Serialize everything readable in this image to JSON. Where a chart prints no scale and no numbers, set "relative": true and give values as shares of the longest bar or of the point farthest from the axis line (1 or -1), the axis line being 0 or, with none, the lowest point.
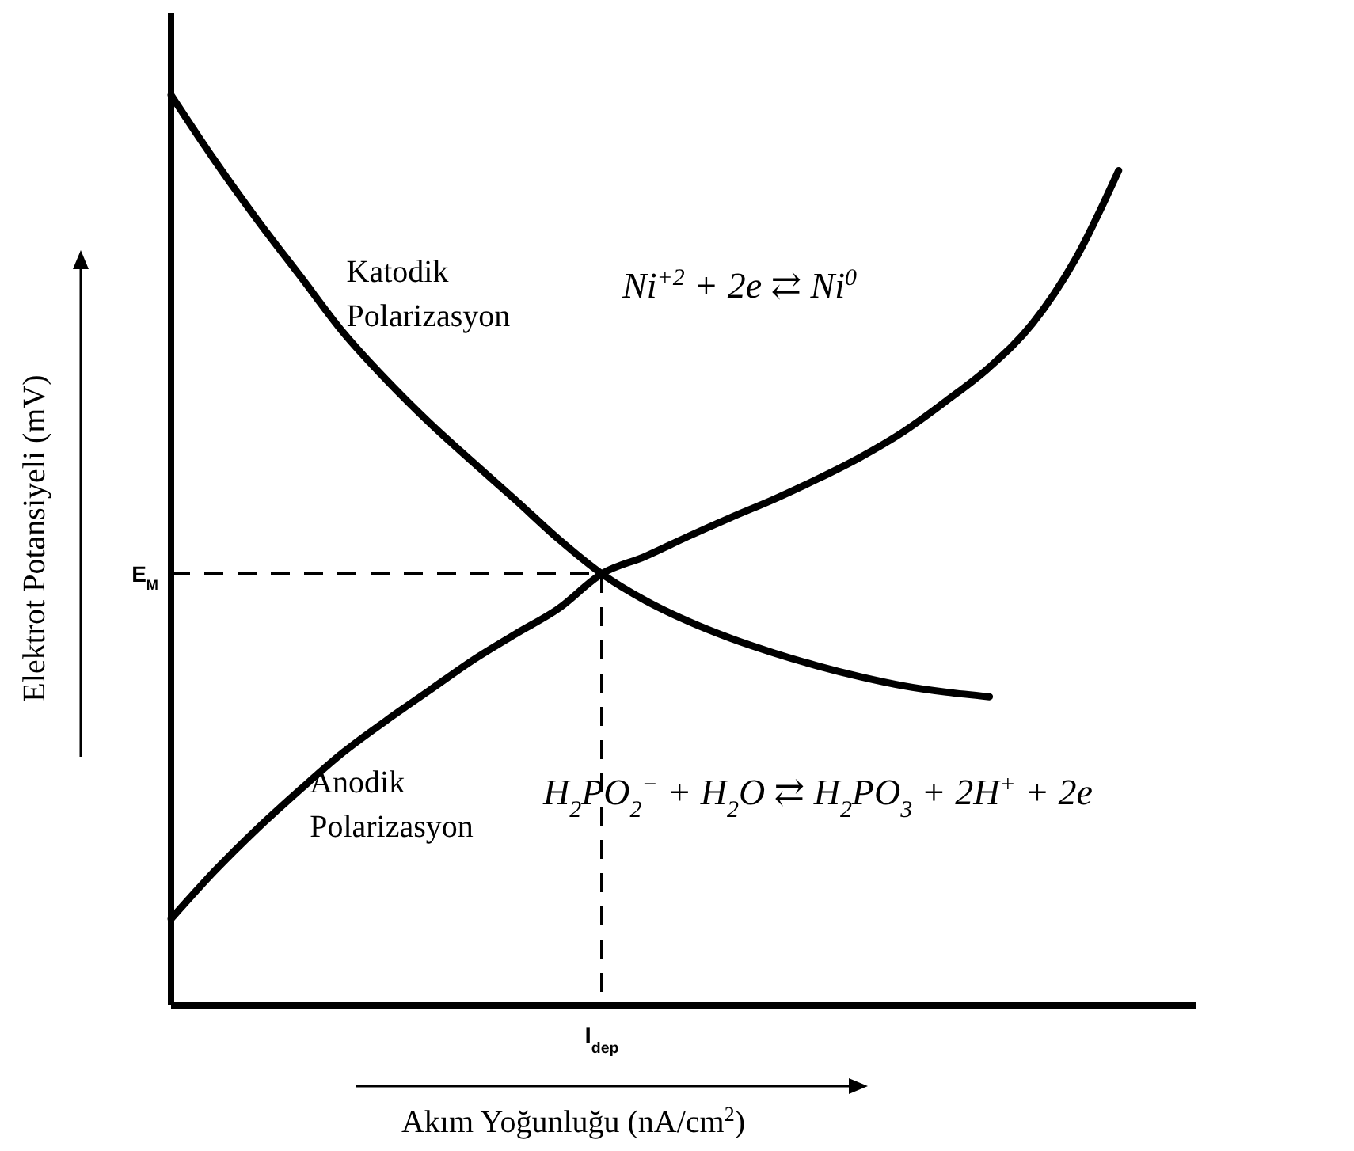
{
  "chart_data": {
    "type": "line",
    "relative": true,
    "xlabel": "Akım Yoğunluğu (nA/cm$^{2}$)",
    "ylabel": "Elektrot Potansiyeli (mV)",
    "categories": [
      null,
      null,
      null,
      null,
      null,
      null,
      null,
      null,
      null,
      null,
      null,
      null,
      null,
      null,
      null,
      null,
      null,
      null,
      null,
      null,
      null,
      null,
      null,
      null
    ],
    "series": [
      {
        "name": "Katodik Polarizasyon",
        "color": "#000000",
        "values": [
          1,
          0.929,
          0.863,
          0.801,
          0.739,
          0.687,
          0.64,
          0.597,
          0.555,
          0.512,
          0.474,
          0.445,
          0.422,
          0.403,
          0.387,
          0.373,
          0.361,
          0.351,
          0.344,
          0.339,
          null,
          null,
          null,
          null
        ]
      },
      {
        "name": "Anodik Polarizasyon",
        "color": "#000000",
        "values": [
          0.095,
          0.147,
          0.194,
          0.237,
          0.278,
          0.313,
          0.346,
          0.379,
          0.408,
          0.436,
          0.474,
          0.493,
          0.515,
          0.536,
          0.556,
          0.578,
          0.602,
          0.63,
          0.664,
          0.701,
          0.749,
          0.82,
          0.917,
          null
        ]
      }
    ],
    "ref_lines": [
      {
        "axis": "y",
        "value": 0.474,
        "label": "E$_{M}$",
        "line_style": "dashed"
      }
    ],
    "annotations": [
      "Ni$^{+2}$ + 2e ⇄ Ni$^{0}$",
      "H$_{2}$PO$_{2}$$^{−}$ + H$_{2}$O ⇄ H$_{2}$PO$_{3}$  + 2H$^{+}$ + 2e",
      "I$_{dep}$"
    ],
    "line_style": "solid",
    "marker": "none"
  }
}
